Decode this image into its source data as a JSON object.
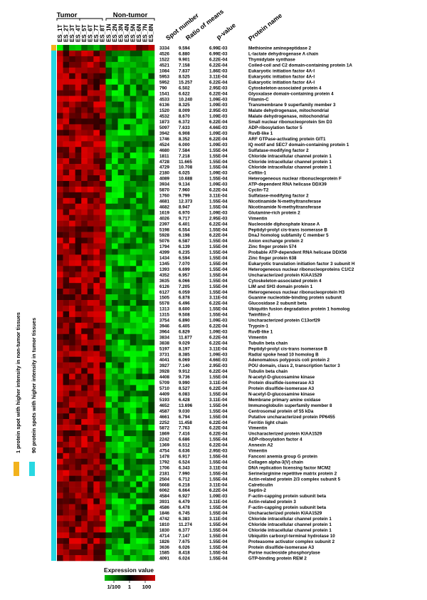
{
  "groups": {
    "tumor": "Tumor",
    "nontumor": "Non-tumor"
  },
  "samples": [
    "ES_1T",
    "ES_2T",
    "ES_3T",
    "ES_4T",
    "ES_5T",
    "ES_6T",
    "ES_7T",
    "ES_8T",
    "ES_1N",
    "ES_2N",
    "ES_3N",
    "ES_4N",
    "ES_5N",
    "ES_6N",
    "ES_7N",
    "ES_8N"
  ],
  "headers": {
    "spot": "Spot number",
    "ratio": "Ratio of means",
    "pvalue": "p-value",
    "protein": "Protein name"
  },
  "side_labels": {
    "nontumor_higher": "1 protein spot with higher intensity in non-tumor tissues",
    "tumor_higher": "90 protein spots with higher intensity in tumor tissues"
  },
  "side_colors": {
    "nontumor_higher": "#f2b21d",
    "tumor_higher": "#28d8e2"
  },
  "legend": {
    "title": "Expression value",
    "min": "1/100",
    "mid": "1",
    "max": "100",
    "colors": [
      "#00c000",
      "#000000",
      "#d00000"
    ]
  },
  "chart_data": {
    "type": "heatmap",
    "rows": [
      {
        "spot": "3334",
        "ratio": "9.594",
        "p": "6.99E-03",
        "protein": "Methionine aminopeptidase 2",
        "group": "nontumor_higher"
      },
      {
        "spot": "4526",
        "ratio": "6.880",
        "p": "6.99E-03",
        "protein": "L-lactate dehydrogenase A chain",
        "group": "tumor_higher"
      },
      {
        "spot": "1522",
        "ratio": "9.901",
        "p": "6.22E-04",
        "protein": "Thymidylate synthase",
        "group": "tumor_higher"
      },
      {
        "spot": "4521",
        "ratio": "7.158",
        "p": "6.22E-04",
        "protein": "Coiled-coil and C2 domain-containing protein 1A",
        "group": "tumor_higher"
      },
      {
        "spot": "1084",
        "ratio": "7.837",
        "p": "1.86E-03",
        "protein": "Eukaryotic initiation factor 4A-I",
        "group": "tumor_higher"
      },
      {
        "spot": "5953",
        "ratio": "8.525",
        "p": "3.11E-04",
        "protein": "Eukaryotic initiation factor 4A-I",
        "group": "tumor_higher"
      },
      {
        "spot": "5952",
        "ratio": "15.257",
        "p": "6.22E-04",
        "protein": "Eukaryotic initiation factor 4A-I",
        "group": "tumor_higher"
      },
      {
        "spot": "790",
        "ratio": "6.502",
        "p": "2.95E-03",
        "protein": "Cytoskeleton-associated protein 4",
        "group": "tumor_higher"
      },
      {
        "spot": "1541",
        "ratio": "6.622",
        "p": "6.22E-04",
        "protein": "Glyoxalase domain-containing protein 4",
        "group": "tumor_higher"
      },
      {
        "spot": "4533",
        "ratio": "10.240",
        "p": "1.09E-03",
        "protein": "Filamin-C",
        "group": "tumor_higher"
      },
      {
        "spot": "6136",
        "ratio": "8.325",
        "p": "1.09E-03",
        "protein": "Transmembrane 9 superfamily member 3",
        "group": "tumor_higher"
      },
      {
        "spot": "1520",
        "ratio": "8.009",
        "p": "2.95E-03",
        "protein": "Malate dehydrogenase, mitochondrial",
        "group": "tumor_higher"
      },
      {
        "spot": "4532",
        "ratio": "8.670",
        "p": "1.09E-03",
        "protein": "Malate dehydrogenase, mitochondrial",
        "group": "tumor_higher"
      },
      {
        "spot": "1873",
        "ratio": "6.372",
        "p": "6.22E-04",
        "protein": "Small nuclear ribonucleoprotein Sm D3",
        "group": "tumor_higher"
      },
      {
        "spot": "5097",
        "ratio": "7.633",
        "p": "4.66E-03",
        "protein": "ADP-ribosylation factor 5",
        "group": "tumor_higher"
      },
      {
        "spot": "3942",
        "ratio": "6.908",
        "p": "1.09E-03",
        "protein": "RuvB-like 1",
        "group": "tumor_higher"
      },
      {
        "spot": "1746",
        "ratio": "8.352",
        "p": "6.22E-04",
        "protein": "ARF GTPase-activating protein GIT1",
        "group": "tumor_higher"
      },
      {
        "spot": "4524",
        "ratio": "6.000",
        "p": "1.09E-03",
        "protein": "IQ motif and SEC7 domain-containing protein 1",
        "group": "tumor_higher"
      },
      {
        "spot": "4680",
        "ratio": "7.584",
        "p": "1.55E-04",
        "protein": "Sulfatase-modifying factor 2",
        "group": "tumor_higher"
      },
      {
        "spot": "1811",
        "ratio": "7.218",
        "p": "1.55E-04",
        "protein": "Chloride intracellular channel protein 1",
        "group": "tumor_higher"
      },
      {
        "spot": "4728",
        "ratio": "11.665",
        "p": "1.55E-04",
        "protein": "Chloride intracellular channel protein 1",
        "group": "tumor_higher"
      },
      {
        "spot": "4729",
        "ratio": "10.708",
        "p": "1.55E-04",
        "protein": "Chloride intracellular channel protein 1",
        "group": "tumor_higher"
      },
      {
        "spot": "2180",
        "ratio": "6.025",
        "p": "1.09E-03",
        "protein": "Cofilin-1",
        "group": "tumor_higher"
      },
      {
        "spot": "4089",
        "ratio": "10.688",
        "p": "1.55E-04",
        "protein": "Heterogeneous nuclear ribonucleoprotein F",
        "group": "tumor_higher"
      },
      {
        "spot": "3934",
        "ratio": "9.134",
        "p": "1.09E-03",
        "protein": "ATP-dependent RNA helicase DDX39",
        "group": "tumor_higher"
      },
      {
        "spot": "5870",
        "ratio": "7.960",
        "p": "6.22E-04",
        "protein": "Cyclin-T2",
        "group": "tumor_higher"
      },
      {
        "spot": "1760",
        "ratio": "9.799",
        "p": "3.11E-04",
        "protein": "Sulfatase-modifying factor 2",
        "group": "tumor_higher"
      },
      {
        "spot": "4681",
        "ratio": "12.373",
        "p": "1.55E-04",
        "protein": "Nicotinamide N-methyltransferase",
        "group": "tumor_higher"
      },
      {
        "spot": "4682",
        "ratio": "8.947",
        "p": "1.55E-04",
        "protein": "Nicotinamide N-methyltransferase",
        "group": "tumor_higher"
      },
      {
        "spot": "1619",
        "ratio": "6.970",
        "p": "1.09E-03",
        "protein": "Glutamine-rich protein 2",
        "group": "tumor_higher"
      },
      {
        "spot": "4026",
        "ratio": "9.717",
        "p": "2.95E-03",
        "protein": "Vimentin",
        "group": "tumor_higher"
      },
      {
        "spot": "2397",
        "ratio": "6.401",
        "p": "6.22E-04",
        "protein": "Nucleoside diphosphate kinase A",
        "group": "tumor_higher"
      },
      {
        "spot": "5198",
        "ratio": "6.554",
        "p": "1.55E-04",
        "protein": "Peptidyl-prolyl cis-trans isomerase B",
        "group": "tumor_higher"
      },
      {
        "spot": "5928",
        "ratio": "6.198",
        "p": "6.22E-04",
        "protein": "DnaJ homolog subfamily C member 5",
        "group": "tumor_higher"
      },
      {
        "spot": "5076",
        "ratio": "6.587",
        "p": "1.55E-04",
        "protein": "Anion exchange protein 2",
        "group": "tumor_higher"
      },
      {
        "spot": "1794",
        "ratio": "6.139",
        "p": "1.55E-04",
        "protein": "Zinc finger protein 574",
        "group": "tumor_higher"
      },
      {
        "spot": "4399",
        "ratio": "6.235",
        "p": "1.55E-04",
        "protein": "Probable ATP-dependent RNA helicase DDX56",
        "group": "tumor_higher"
      },
      {
        "spot": "1434",
        "ratio": "6.594",
        "p": "1.55E-04",
        "protein": "Zinc finger protein 638",
        "group": "tumor_higher"
      },
      {
        "spot": "1345",
        "ratio": "7.070",
        "p": "1.55E-04",
        "protein": "Eukaryotic translation initiation factor 3 subunit H",
        "group": "tumor_higher"
      },
      {
        "spot": "1393",
        "ratio": "6.699",
        "p": "1.55E-04",
        "protein": "Heterogeneous nuclear ribonucleoproteins C1/C2",
        "group": "tumor_higher"
      },
      {
        "spot": "4352",
        "ratio": "6.957",
        "p": "1.55E-04",
        "protein": "Uncharacterized protein KIAA1529",
        "group": "tumor_higher"
      },
      {
        "spot": "3635",
        "ratio": "6.066",
        "p": "1.55E-04",
        "protein": "Cytoskeleton-associated protein 4",
        "group": "tumor_higher"
      },
      {
        "spot": "6126",
        "ratio": "7.205",
        "p": "1.55E-04",
        "protein": "LIM and SH3 domain protein 1",
        "group": "tumor_higher"
      },
      {
        "spot": "6127",
        "ratio": "6.059",
        "p": "1.55E-04",
        "protein": "Heterogeneous nuclear ribonucleoprotein H3",
        "group": "tumor_higher"
      },
      {
        "spot": "1505",
        "ratio": "6.878",
        "p": "3.11E-04",
        "protein": "Guanine nucleotide-binding protein subunit",
        "group": "tumor_higher"
      },
      {
        "spot": "5578",
        "ratio": "6.496",
        "p": "6.22E-04",
        "protein": "Glucosidase 2 subunit beta",
        "group": "tumor_higher"
      },
      {
        "spot": "1313",
        "ratio": "8.600",
        "p": "1.55E-04",
        "protein": "Ubiquitin fusion degradation protein 1 homolog",
        "group": "tumor_higher"
      },
      {
        "spot": "1315",
        "ratio": "9.508",
        "p": "1.55E-04",
        "protein": "Twinfilin-2",
        "group": "tumor_higher"
      },
      {
        "spot": "3754",
        "ratio": "6.890",
        "p": "1.09E-03",
        "protein": "Uncharacterized protein C13orf29",
        "group": "tumor_higher"
      },
      {
        "spot": "3946",
        "ratio": "6.405",
        "p": "6.22E-04",
        "protein": "Trypsin-1",
        "group": "tumor_higher"
      },
      {
        "spot": "3964",
        "ratio": "6.829",
        "p": "1.09E-03",
        "protein": "RuvB-like 1",
        "group": "tumor_higher"
      },
      {
        "spot": "3834",
        "ratio": "11.877",
        "p": "6.22E-04",
        "protein": "Vimentin",
        "group": "tumor_higher"
      },
      {
        "spot": "3838",
        "ratio": "9.029",
        "p": "6.22E-04",
        "protein": "Tubulin beta chain",
        "group": "tumor_higher"
      },
      {
        "spot": "5197",
        "ratio": "8.197",
        "p": "3.11E-04",
        "protein": "Peptidyl-prolyl cis-trans isomerase B",
        "group": "tumor_higher"
      },
      {
        "spot": "3731",
        "ratio": "8.385",
        "p": "1.09E-03",
        "protein": "Radial spoke head 10 homolog B",
        "group": "tumor_higher"
      },
      {
        "spot": "4041",
        "ratio": "6.069",
        "p": "4.66E-03",
        "protein": "Adenomatous polyposis coli protein 2",
        "group": "tumor_higher"
      },
      {
        "spot": "3927",
        "ratio": "7.140",
        "p": "2.95E-03",
        "protein": "POU domain, class 2, transcription factor 3",
        "group": "tumor_higher"
      },
      {
        "spot": "3928",
        "ratio": "9.912",
        "p": "6.22E-04",
        "protein": "Tubulin beta chain",
        "group": "tumor_higher"
      },
      {
        "spot": "4408",
        "ratio": "9.736",
        "p": "1.55E-04",
        "protein": "N-acetyl-D-glucosamine kinase",
        "group": "tumor_higher"
      },
      {
        "spot": "5709",
        "ratio": "9.990",
        "p": "3.11E-04",
        "protein": "Protein disulfide-isomerase A3",
        "group": "tumor_higher"
      },
      {
        "spot": "5710",
        "ratio": "8.527",
        "p": "6.22E-04",
        "protein": "Protein disulfide-isomerase A3",
        "group": "tumor_higher"
      },
      {
        "spot": "4409",
        "ratio": "6.083",
        "p": "1.55E-04",
        "protein": "N-acetyl-D-glucosamine kinase",
        "group": "tumor_higher"
      },
      {
        "spot": "5193",
        "ratio": "6.428",
        "p": "3.11E-04",
        "protein": "Membrane primary amine oxidase",
        "group": "tumor_higher"
      },
      {
        "spot": "4652",
        "ratio": "13.696",
        "p": "1.55E-04",
        "protein": "Immunoglobulin superfamily member 8",
        "group": "tumor_higher"
      },
      {
        "spot": "4587",
        "ratio": "9.030",
        "p": "1.55E-04",
        "protein": "Centrosomal protein of 55 kDa",
        "group": "tumor_higher"
      },
      {
        "spot": "4661",
        "ratio": "6.794",
        "p": "1.55E-04",
        "protein": "Putative uncharacterized protein PP6455",
        "group": "tumor_higher"
      },
      {
        "spot": "2252",
        "ratio": "11.458",
        "p": "6.22E-04",
        "protein": "Ferritin light chain",
        "group": "tumor_higher"
      },
      {
        "spot": "5872",
        "ratio": "7.763",
        "p": "6.22E-04",
        "protein": "Vimentin",
        "group": "tumor_higher"
      },
      {
        "spot": "1869",
        "ratio": "7.416",
        "p": "6.22E-04",
        "protein": "Uncharacterized protein KIAA1529",
        "group": "tumor_higher"
      },
      {
        "spot": "2242",
        "ratio": "6.686",
        "p": "1.55E-04",
        "protein": "ADP-ribosylation factor 4",
        "group": "tumor_higher"
      },
      {
        "spot": "1369",
        "ratio": "6.512",
        "p": "6.22E-04",
        "protein": "Annexin A2",
        "group": "tumor_higher"
      },
      {
        "spot": "4754",
        "ratio": "6.636",
        "p": "2.95E-03",
        "protein": "Vimentin",
        "group": "tumor_higher"
      },
      {
        "spot": "1478",
        "ratio": "6.917",
        "p": "1.55E-04",
        "protein": "Fanconi anemia group G protein",
        "group": "tumor_higher"
      },
      {
        "spot": "1792",
        "ratio": "6.524",
        "p": "1.55E-04",
        "protein": "Collagen alpha-3(V) chain",
        "group": "tumor_higher"
      },
      {
        "spot": "1706",
        "ratio": "6.343",
        "p": "3.11E-04",
        "protein": "DNA replication licensing factor MCM2",
        "group": "tumor_higher"
      },
      {
        "spot": "2181",
        "ratio": "7.990",
        "p": "1.55E-04",
        "protein": "Serine/arginine repetitive matrix protein 2",
        "group": "tumor_higher"
      },
      {
        "spot": "2504",
        "ratio": "6.712",
        "p": "1.55E-04",
        "protein": "Actin-related protein 2/3 complex subunit 5",
        "group": "tumor_higher"
      },
      {
        "spot": "5668",
        "ratio": "6.218",
        "p": "3.11E-04",
        "protein": "Calreticulin",
        "group": "tumor_higher"
      },
      {
        "spot": "6062",
        "ratio": "6.664",
        "p": "6.22E-04",
        "protein": "Septin-2",
        "group": "tumor_higher"
      },
      {
        "spot": "4584",
        "ratio": "6.927",
        "p": "1.09E-03",
        "protein": "F-actin-capping protein subunit beta",
        "group": "tumor_higher"
      },
      {
        "spot": "3931",
        "ratio": "6.479",
        "p": "3.11E-04",
        "protein": "Actin-related protein 3",
        "group": "tumor_higher"
      },
      {
        "spot": "4586",
        "ratio": "6.478",
        "p": "1.55E-04",
        "protein": "F-actin-capping protein subunit beta",
        "group": "tumor_higher"
      },
      {
        "spot": "1846",
        "ratio": "6.745",
        "p": "1.55E-04",
        "protein": "Uncharacterized protein KIAA1529",
        "group": "tumor_higher"
      },
      {
        "spot": "4742",
        "ratio": "6.383",
        "p": "3.11E-04",
        "protein": "Chloride intracellular channel protein 1",
        "group": "tumor_higher"
      },
      {
        "spot": "1810",
        "ratio": "11.274",
        "p": "1.55E-04",
        "protein": "Chloride intracellular channel protein 1",
        "group": "tumor_higher"
      },
      {
        "spot": "1830",
        "ratio": "6.377",
        "p": "1.55E-04",
        "protein": "Chloride intracellular channel protein 1",
        "group": "tumor_higher"
      },
      {
        "spot": "4714",
        "ratio": "7.147",
        "p": "1.55E-04",
        "protein": "Ubiquitin carboxyl-terminal hydrolase 10",
        "group": "tumor_higher"
      },
      {
        "spot": "1826",
        "ratio": "7.675",
        "p": "1.55E-04",
        "protein": "Proteasome activator complex subunit 2",
        "group": "tumor_higher"
      },
      {
        "spot": "3636",
        "ratio": "6.026",
        "p": "1.55E-04",
        "protein": "Protein disulfide-isomerase A3",
        "group": "tumor_higher"
      },
      {
        "spot": "1585",
        "ratio": "8.418",
        "p": "1.55E-04",
        "protein": "Purine nucleoside phosphorylase",
        "group": "tumor_higher"
      },
      {
        "spot": "4091",
        "ratio": "6.024",
        "p": "1.55E-04",
        "protein": "GTP-binding protein REM 2",
        "group": "tumor_higher"
      }
    ]
  }
}
